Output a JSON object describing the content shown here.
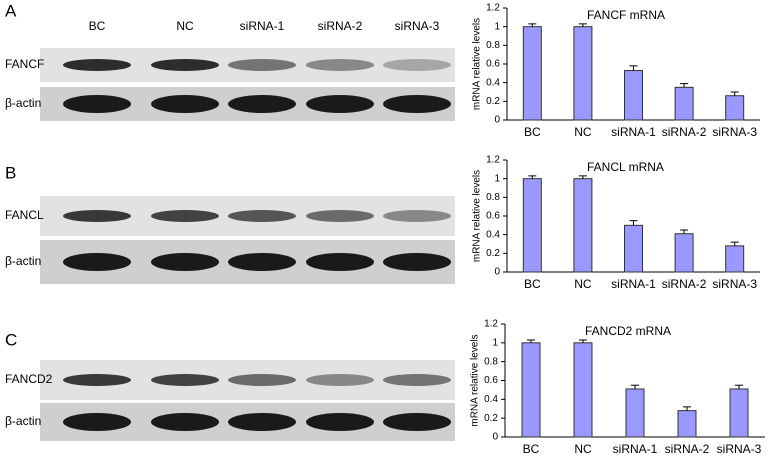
{
  "blots": [
    {
      "panel": "A",
      "lanes": [
        "BC",
        "NC",
        "siRNA-1",
        "siRNA-2",
        "siRNA-3"
      ],
      "rows": [
        "FANCF",
        "β-actin"
      ]
    },
    {
      "panel": "B",
      "rows": [
        "FANCL",
        "β-actin"
      ]
    },
    {
      "panel": "C",
      "rows": [
        "FANCD2",
        "β-actin"
      ]
    }
  ],
  "chart_data": [
    {
      "type": "bar",
      "title": "FANCF mRNA",
      "y_label": "mRNA relative levels",
      "categories": [
        "BC",
        "NC",
        "siRNA-1",
        "siRNA-2",
        "siRNA-3"
      ],
      "series": [
        {
          "color": "#9999ff",
          "values": [
            1.0,
            1.0,
            0.53,
            0.35,
            0.26
          ],
          "errors": [
            0.03,
            0.03,
            0.05,
            0.04,
            0.04
          ]
        }
      ],
      "ylim": [
        0,
        1.2
      ],
      "yticks": [
        0,
        0.2,
        0.4,
        0.6,
        0.8,
        1,
        1.2
      ]
    },
    {
      "type": "bar",
      "title": "FANCL mRNA",
      "y_label": "mRNA relative levels",
      "categories": [
        "BC",
        "NC",
        "siRNA-1",
        "siRNA-2",
        "siRNA-3"
      ],
      "series": [
        {
          "color": "#9999ff",
          "values": [
            1.0,
            1.0,
            0.5,
            0.41,
            0.28
          ],
          "errors": [
            0.03,
            0.03,
            0.05,
            0.04,
            0.04
          ]
        }
      ],
      "ylim": [
        0,
        1.2
      ],
      "yticks": [
        0,
        0.2,
        0.4,
        0.6,
        0.8,
        1,
        1.2
      ]
    },
    {
      "type": "bar",
      "title": "FANCD2 mRNA",
      "y_label": "mRNA relative levels",
      "categories": [
        "BC",
        "NC",
        "siRNA-1",
        "siRNA-2",
        "siRNA-3"
      ],
      "series": [
        {
          "color": "#9999ff",
          "values": [
            1.0,
            1.0,
            0.51,
            0.28,
            0.51
          ],
          "errors": [
            0.03,
            0.03,
            0.04,
            0.04,
            0.04
          ]
        }
      ],
      "ylim": [
        0,
        1.2
      ],
      "yticks": [
        0,
        0.2,
        0.4,
        0.6,
        0.8,
        1,
        1.2
      ]
    }
  ]
}
